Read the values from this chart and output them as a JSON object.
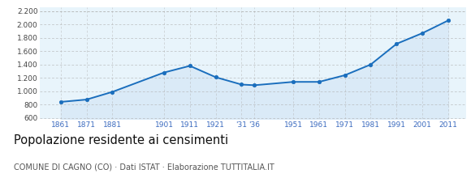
{
  "years": [
    1861,
    1871,
    1881,
    1901,
    1911,
    1921,
    1931,
    1936,
    1951,
    1961,
    1971,
    1981,
    1991,
    2001,
    2011
  ],
  "population": [
    840,
    875,
    990,
    1280,
    1380,
    1210,
    1100,
    1090,
    1140,
    1140,
    1240,
    1400,
    1710,
    1870,
    2060
  ],
  "x_tick_labels": [
    "1861",
    "1871",
    "1881",
    "1901",
    "1911",
    "1921",
    "'31",
    "'36",
    "1951",
    "1961",
    "1971",
    "1981",
    "1991",
    "2001",
    "2011"
  ],
  "y_ticks": [
    600,
    800,
    1000,
    1200,
    1400,
    1600,
    1800,
    2000,
    2200
  ],
  "ylim": [
    580,
    2260
  ],
  "xlim_left": 1853,
  "xlim_right": 2018,
  "line_color": "#1a6ebd",
  "marker_color": "#1a6ebd",
  "fill_color": "#daeaf7",
  "grid_color": "#b0b0b0",
  "background_color": "#ffffff",
  "plot_bg_color": "#e8f4fb",
  "title_text": "Popolazione residente ai censimenti",
  "subtitle_text": "COMUNE DI CAGNO (CO) · Dati ISTAT · Elaborazione TUTTITALIA.IT",
  "x_label_color": "#3a6abf",
  "title_fontsize": 10.5,
  "subtitle_fontsize": 7.0,
  "tick_fontsize": 6.5
}
